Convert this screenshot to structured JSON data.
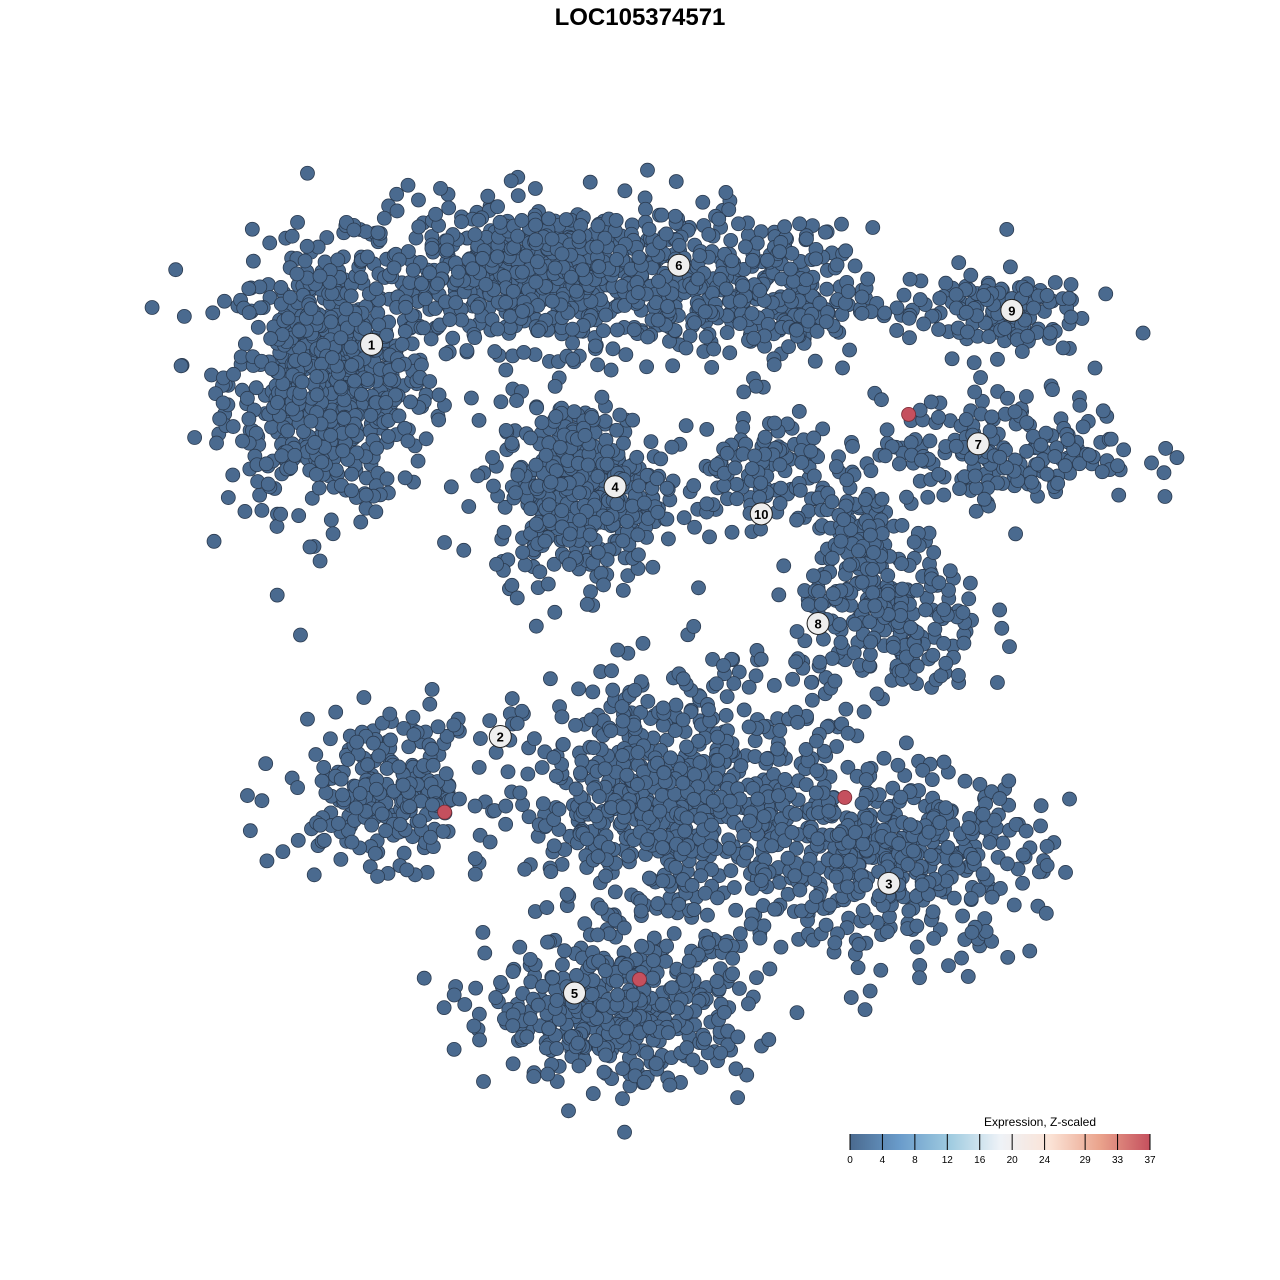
{
  "chart_data": {
    "type": "scatter",
    "title": "LOC105374571",
    "xlabel": "",
    "ylabel": "",
    "grid": false,
    "axes_visible": false,
    "point_color_default": "#4a6a8f",
    "highlight_color": "#c5505e",
    "clusters": [
      {
        "label": "1",
        "label_pos": [
          -25.3,
          25.9
        ]
      },
      {
        "label": "2",
        "label_pos": [
          -14.2,
          -8.8
        ]
      },
      {
        "label": "3",
        "label_pos": [
          19.3,
          -21.8
        ]
      },
      {
        "label": "4",
        "label_pos": [
          -4.3,
          13.3
        ]
      },
      {
        "label": "5",
        "label_pos": [
          -7.8,
          -31.5
        ]
      },
      {
        "label": "6",
        "label_pos": [
          1.2,
          32.9
        ]
      },
      {
        "label": "7",
        "label_pos": [
          27.0,
          17.1
        ]
      },
      {
        "label": "8",
        "label_pos": [
          13.2,
          1.2
        ]
      },
      {
        "label": "9",
        "label_pos": [
          29.9,
          28.9
        ]
      },
      {
        "label": "10",
        "label_pos": [
          8.3,
          10.9
        ]
      }
    ],
    "point_groups": [
      {
        "center": [
          -28.9,
          22.7
        ],
        "sd": [
          5.5,
          7
        ],
        "n": 700,
        "value": 0
      },
      {
        "center": [
          -9.1,
          32.0
        ],
        "sd": [
          11,
          4
        ],
        "n": 800,
        "value": 0
      },
      {
        "center": [
          9.9,
          29.8
        ],
        "sd": [
          5,
          4
        ],
        "n": 200,
        "value": 0
      },
      {
        "center": [
          -7.3,
          13.0
        ],
        "sd": [
          4.5,
          5
        ],
        "n": 450,
        "value": 0
      },
      {
        "center": [
          28.0,
          28.9
        ],
        "sd": [
          5,
          2.5
        ],
        "n": 150,
        "value": 0
      },
      {
        "center": [
          29.7,
          16.5
        ],
        "sd": [
          7,
          3
        ],
        "n": 200,
        "value": 0
      },
      {
        "center": [
          8.2,
          14.8
        ],
        "sd": [
          4,
          3.5
        ],
        "n": 120,
        "value": 0
      },
      {
        "center": [
          19.4,
          1.5
        ],
        "sd": [
          5,
          5
        ],
        "n": 250,
        "value": 0
      },
      {
        "center": [
          16.8,
          8.6
        ],
        "sd": [
          2,
          4
        ],
        "n": 80,
        "value": 0
      },
      {
        "center": [
          -23.7,
          -13.5
        ],
        "sd": [
          5.5,
          4
        ],
        "n": 250,
        "value": 0
      },
      {
        "center": [
          1.3,
          -14.4
        ],
        "sd": [
          8,
          7
        ],
        "n": 700,
        "value": 0
      },
      {
        "center": [
          19.4,
          -19.7
        ],
        "sd": [
          8,
          5
        ],
        "n": 450,
        "value": 0
      },
      {
        "center": [
          -3.9,
          -33.0
        ],
        "sd": [
          7,
          4
        ],
        "n": 450,
        "value": 0
      }
    ],
    "high_points": [
      {
        "x": 21.0,
        "y": 19.7,
        "value": 37
      },
      {
        "x": 15.5,
        "y": -14.2,
        "value": 37
      },
      {
        "x": -19.0,
        "y": -15.5,
        "value": 37
      },
      {
        "x": -2.2,
        "y": -30.3,
        "value": 37
      }
    ],
    "colorbar": {
      "title": "Expression, Z-scaled",
      "ticks": [
        "0",
        "4",
        "8",
        "12",
        "16",
        "20",
        "24",
        "29",
        "33",
        "37"
      ],
      "range": [
        0,
        37
      ],
      "colors": [
        "#4a6a8f",
        "#6a9ccb",
        "#9fcbe0",
        "#eef2f7",
        "#fbe3d6",
        "#eaa38c",
        "#c5505e"
      ]
    }
  }
}
